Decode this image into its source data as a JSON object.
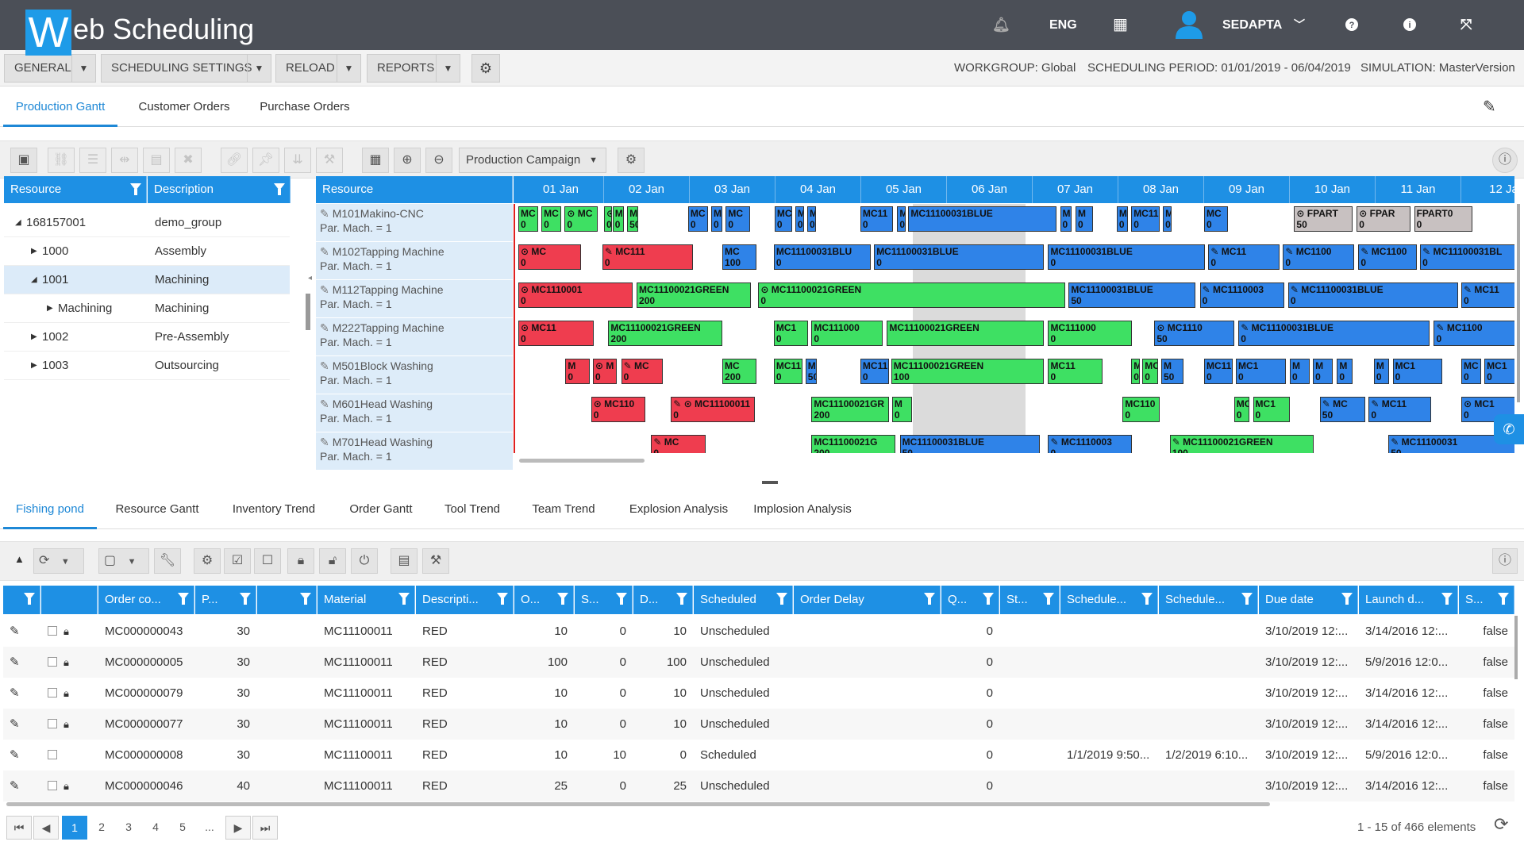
{
  "topbar": {
    "logo_letter": "W",
    "logo_rest": "eb Scheduling",
    "language": "ENG",
    "user": "SEDAPTA"
  },
  "menubar": {
    "buttons": [
      "GENERAL",
      "SCHEDULING SETTINGS",
      "RELOAD",
      "REPORTS"
    ],
    "workgroup": "WORKGROUP: Global",
    "period": "SCHEDULING PERIOD: 01/01/2019 - 06/04/2019",
    "simulation": "SIMULATION: MasterVersion"
  },
  "top_tabs": [
    "Production Gantt",
    "Customer Orders",
    "Purchase Orders"
  ],
  "gantt_toolbar": {
    "campaign_select": "Production Campaign"
  },
  "tree": {
    "headers": [
      "Resource",
      "Description"
    ],
    "rows": [
      {
        "resource": "168157001",
        "description": "demo_group",
        "prefix": "◢"
      },
      {
        "resource": "1000",
        "description": "Assembly",
        "prefix": "▶"
      },
      {
        "resource": "1001",
        "description": "Machining",
        "prefix": "◢"
      },
      {
        "resource": "Machining",
        "description": "Machining",
        "prefix": "▶"
      },
      {
        "resource": "1002",
        "description": "Pre-Assembly",
        "prefix": "▶"
      },
      {
        "resource": "1003",
        "description": "Outsourcing",
        "prefix": "▶"
      }
    ]
  },
  "gantt": {
    "resource_header": "Resource",
    "days": [
      "01 Jan",
      "02 Jan",
      "03 Jan",
      "04 Jan",
      "05 Jan",
      "06 Jan",
      "07 Jan",
      "08 Jan",
      "09 Jan",
      "10 Jan",
      "11 Jan",
      "12 Ja"
    ],
    "resources": [
      {
        "name": "M101Makino-CNC",
        "sub": "Par. Mach. = 1"
      },
      {
        "name": "M102Tapping Machine",
        "sub": "Par. Mach. = 1"
      },
      {
        "name": "M112Tapping Machine",
        "sub": "Par. Mach. = 1"
      },
      {
        "name": "M222Tapping Machine",
        "sub": "Par. Mach. = 1"
      },
      {
        "name": "M501Block Washing",
        "sub": "Par. Mach. = 1"
      },
      {
        "name": "M601Head Washing",
        "sub": "Par. Mach. = 1"
      },
      {
        "name": "M701Head Washing",
        "sub": "Par. Mach. = 1"
      }
    ],
    "bars": [
      {
        "row": 0,
        "day": 0.0,
        "len": 0.25,
        "color": "green",
        "label": "MC",
        "qty": "0"
      },
      {
        "row": 0,
        "day": 0.27,
        "len": 0.25,
        "color": "green",
        "label": "MC",
        "qty": "0"
      },
      {
        "row": 0,
        "day": 0.54,
        "len": 0.4,
        "color": "green",
        "label": "⊙ MC",
        "qty": "0"
      },
      {
        "row": 0,
        "day": 1.0,
        "len": 0.08,
        "color": "green",
        "label": "⊙",
        "qty": "0"
      },
      {
        "row": 0,
        "day": 1.1,
        "len": 0.15,
        "color": "green",
        "label": "M",
        "qty": "0"
      },
      {
        "row": 0,
        "day": 1.27,
        "len": 0.15,
        "color": "green",
        "label": "M",
        "qty": "50"
      },
      {
        "row": 0,
        "day": 1.98,
        "len": 0.25,
        "color": "blue",
        "label": "MC",
        "qty": "0"
      },
      {
        "row": 0,
        "day": 2.25,
        "len": 0.15,
        "color": "blue",
        "label": "M",
        "qty": "0"
      },
      {
        "row": 0,
        "day": 2.42,
        "len": 0.3,
        "color": "blue",
        "label": "MC",
        "qty": "0"
      },
      {
        "row": 0,
        "day": 2.99,
        "len": 0.22,
        "color": "blue",
        "label": "MC",
        "qty": "0"
      },
      {
        "row": 0,
        "day": 3.23,
        "len": 0.12,
        "color": "blue",
        "label": "M",
        "qty": "0"
      },
      {
        "row": 0,
        "day": 3.37,
        "len": 0.12,
        "color": "blue",
        "label": "M",
        "qty": "0"
      },
      {
        "row": 0,
        "day": 3.99,
        "len": 0.4,
        "color": "blue",
        "label": "MC11",
        "qty": "0"
      },
      {
        "row": 0,
        "day": 4.42,
        "len": 0.12,
        "color": "blue",
        "label": "M",
        "qty": "0"
      },
      {
        "row": 0,
        "day": 4.55,
        "len": 1.75,
        "color": "blue",
        "label": "MC11100031BLUE",
        "qty": ""
      },
      {
        "row": 0,
        "day": 6.32,
        "len": 0.15,
        "color": "blue",
        "label": "M",
        "qty": "0"
      },
      {
        "row": 0,
        "day": 6.5,
        "len": 0.22,
        "color": "blue",
        "label": "M",
        "qty": "0"
      },
      {
        "row": 0,
        "day": 6.98,
        "len": 0.15,
        "color": "blue",
        "label": "M",
        "qty": "0"
      },
      {
        "row": 0,
        "day": 7.15,
        "len": 0.35,
        "color": "blue",
        "label": "MC11",
        "qty": "0"
      },
      {
        "row": 0,
        "day": 7.52,
        "len": 0.12,
        "color": "blue",
        "label": "M",
        "qty": "0"
      },
      {
        "row": 0,
        "day": 8.0,
        "len": 0.3,
        "color": "blue",
        "label": "MC",
        "qty": "0"
      },
      {
        "row": 0,
        "day": 9.05,
        "len": 0.7,
        "color": "gray",
        "label": "⊙ FPART",
        "qty": "50"
      },
      {
        "row": 0,
        "day": 9.78,
        "len": 0.65,
        "color": "gray",
        "label": "⊙ FPAR",
        "qty": "0"
      },
      {
        "row": 0,
        "day": 10.45,
        "len": 0.7,
        "color": "gray",
        "label": "FPART0",
        "qty": "0"
      },
      {
        "row": 1,
        "day": 0.0,
        "len": 0.75,
        "color": "red",
        "label": "⊙ MC",
        "qty": "0"
      },
      {
        "row": 1,
        "day": 0.98,
        "len": 1.08,
        "color": "red",
        "label": "✎ MC111",
        "qty": "0"
      },
      {
        "row": 1,
        "day": 2.38,
        "len": 0.42,
        "color": "blue",
        "label": "MC",
        "qty": "100"
      },
      {
        "row": 1,
        "day": 2.98,
        "len": 1.15,
        "color": "blue",
        "label": "MC11100031BLU",
        "qty": "0"
      },
      {
        "row": 1,
        "day": 4.15,
        "len": 2.0,
        "color": "blue",
        "label": "MC11100031BLUE",
        "qty": "0"
      },
      {
        "row": 1,
        "day": 6.18,
        "len": 1.85,
        "color": "blue",
        "label": "MC11100031BLUE",
        "qty": "0"
      },
      {
        "row": 1,
        "day": 8.05,
        "len": 0.85,
        "color": "blue",
        "label": "✎ MC11",
        "qty": "0"
      },
      {
        "row": 1,
        "day": 8.92,
        "len": 0.85,
        "color": "blue",
        "label": "✎ MC1100",
        "qty": "0"
      },
      {
        "row": 1,
        "day": 9.8,
        "len": 0.7,
        "color": "blue",
        "label": "✎ MC1100",
        "qty": "0"
      },
      {
        "row": 1,
        "day": 10.52,
        "len": 1.48,
        "color": "blue",
        "label": "✎ MC11100031BL",
        "qty": "0"
      },
      {
        "row": 2,
        "day": 0.0,
        "len": 1.35,
        "color": "red",
        "label": "⊙ MC1110001",
        "qty": "0"
      },
      {
        "row": 2,
        "day": 1.38,
        "len": 1.35,
        "color": "green",
        "label": "MC11100021GREEN",
        "qty": "200"
      },
      {
        "row": 2,
        "day": 2.8,
        "len": 3.6,
        "color": "green",
        "label": "⊙ MC11100021GREEN",
        "qty": "0"
      },
      {
        "row": 2,
        "day": 6.42,
        "len": 1.5,
        "color": "blue",
        "label": "MC11100031BLUE",
        "qty": "50"
      },
      {
        "row": 2,
        "day": 7.95,
        "len": 1.0,
        "color": "blue",
        "label": "✎ MC1110003",
        "qty": "0"
      },
      {
        "row": 2,
        "day": 8.98,
        "len": 2.0,
        "color": "blue",
        "label": "✎ MC11100031BLUE",
        "qty": "0"
      },
      {
        "row": 2,
        "day": 11.0,
        "len": 1.0,
        "color": "blue",
        "label": "✎ MC11",
        "qty": "0"
      },
      {
        "row": 3,
        "day": 0.0,
        "len": 0.9,
        "color": "red",
        "label": "⊙ MC11",
        "qty": "0"
      },
      {
        "row": 3,
        "day": 1.05,
        "len": 1.35,
        "color": "green",
        "label": "MC11100021GREEN",
        "qty": "200"
      },
      {
        "row": 3,
        "day": 2.98,
        "len": 0.42,
        "color": "green",
        "label": "MC1",
        "qty": "0"
      },
      {
        "row": 3,
        "day": 3.42,
        "len": 0.85,
        "color": "green",
        "label": "MC111000",
        "qty": "0"
      },
      {
        "row": 3,
        "day": 4.3,
        "len": 1.85,
        "color": "green",
        "label": "MC11100021GREEN",
        "qty": ""
      },
      {
        "row": 3,
        "day": 6.18,
        "len": 1.0,
        "color": "green",
        "label": "MC111000",
        "qty": "0"
      },
      {
        "row": 3,
        "day": 7.42,
        "len": 0.95,
        "color": "blue",
        "label": "⊙ MC1110",
        "qty": "50"
      },
      {
        "row": 3,
        "day": 8.4,
        "len": 2.25,
        "color": "blue",
        "label": "✎ MC11100031BLUE",
        "qty": "0"
      },
      {
        "row": 3,
        "day": 10.68,
        "len": 1.32,
        "color": "blue",
        "label": "✎ MC1100",
        "qty": "0"
      },
      {
        "row": 4,
        "day": 0.55,
        "len": 0.3,
        "color": "red",
        "label": "M",
        "qty": "0"
      },
      {
        "row": 4,
        "day": 0.87,
        "len": 0.3,
        "color": "red",
        "label": "⊙ M",
        "qty": "0"
      },
      {
        "row": 4,
        "day": 1.2,
        "len": 0.5,
        "color": "red",
        "label": "✎ MC",
        "qty": "0"
      },
      {
        "row": 4,
        "day": 2.38,
        "len": 0.42,
        "color": "green",
        "label": "MC",
        "qty": "200"
      },
      {
        "row": 4,
        "day": 2.98,
        "len": 0.35,
        "color": "green",
        "label": "MC11",
        "qty": "0"
      },
      {
        "row": 4,
        "day": 3.35,
        "len": 0.15,
        "color": "blue",
        "label": "M",
        "qty": "50"
      },
      {
        "row": 4,
        "day": 3.99,
        "len": 0.35,
        "color": "blue",
        "label": "MC11",
        "qty": "0"
      },
      {
        "row": 4,
        "day": 4.35,
        "len": 1.8,
        "color": "green",
        "label": "MC11100021GREEN",
        "qty": "100"
      },
      {
        "row": 4,
        "day": 6.18,
        "len": 0.65,
        "color": "green",
        "label": "MC11",
        "qty": "0"
      },
      {
        "row": 4,
        "day": 7.15,
        "len": 0.12,
        "color": "green",
        "label": "M",
        "qty": "0"
      },
      {
        "row": 4,
        "day": 7.28,
        "len": 0.2,
        "color": "green",
        "label": "MC",
        "qty": "0"
      },
      {
        "row": 4,
        "day": 7.5,
        "len": 0.28,
        "color": "blue",
        "label": "M",
        "qty": "50"
      },
      {
        "row": 4,
        "day": 8.0,
        "len": 0.35,
        "color": "blue",
        "label": "MC11",
        "qty": "0"
      },
      {
        "row": 4,
        "day": 8.37,
        "len": 0.6,
        "color": "blue",
        "label": "MC1",
        "qty": "0"
      },
      {
        "row": 4,
        "day": 9.0,
        "len": 0.25,
        "color": "blue",
        "label": "M",
        "qty": "0"
      },
      {
        "row": 4,
        "day": 9.27,
        "len": 0.25,
        "color": "blue",
        "label": "M",
        "qty": "0"
      },
      {
        "row": 4,
        "day": 9.55,
        "len": 0.2,
        "color": "blue",
        "label": "M",
        "qty": "0"
      },
      {
        "row": 4,
        "day": 9.98,
        "len": 0.2,
        "color": "blue",
        "label": "M",
        "qty": "0"
      },
      {
        "row": 4,
        "day": 10.2,
        "len": 0.6,
        "color": "blue",
        "label": "MC1",
        "qty": "0"
      },
      {
        "row": 4,
        "day": 11.0,
        "len": 0.25,
        "color": "blue",
        "label": "MC",
        "qty": "0"
      },
      {
        "row": 4,
        "day": 11.27,
        "len": 0.7,
        "color": "blue",
        "label": "MC1",
        "qty": "0"
      },
      {
        "row": 5,
        "day": 0.85,
        "len": 0.65,
        "color": "red",
        "label": "⊙ MC110",
        "qty": "0"
      },
      {
        "row": 5,
        "day": 1.78,
        "len": 1.0,
        "color": "red",
        "label": "✎ ⊙ MC11100011",
        "qty": "0"
      },
      {
        "row": 5,
        "day": 3.42,
        "len": 0.92,
        "color": "green",
        "label": "MC11100021GR",
        "qty": "200"
      },
      {
        "row": 5,
        "day": 4.36,
        "len": 0.25,
        "color": "green",
        "label": "M",
        "qty": "0"
      },
      {
        "row": 5,
        "day": 7.05,
        "len": 0.45,
        "color": "green",
        "label": "MC110",
        "qty": "0"
      },
      {
        "row": 5,
        "day": 8.35,
        "len": 0.2,
        "color": "green",
        "label": "MC",
        "qty": "0"
      },
      {
        "row": 5,
        "day": 8.57,
        "len": 0.45,
        "color": "green",
        "label": "MC1",
        "qty": "0"
      },
      {
        "row": 5,
        "day": 9.35,
        "len": 0.55,
        "color": "blue",
        "label": "✎ MC",
        "qty": "50"
      },
      {
        "row": 5,
        "day": 9.92,
        "len": 0.75,
        "color": "blue",
        "label": "✎ MC11",
        "qty": "0"
      },
      {
        "row": 5,
        "day": 11.0,
        "len": 1.0,
        "color": "blue",
        "label": "⊙ MC1",
        "qty": "0"
      },
      {
        "row": 6,
        "day": 1.55,
        "len": 0.65,
        "color": "red",
        "label": "✎ MC",
        "qty": "0"
      },
      {
        "row": 6,
        "day": 3.42,
        "len": 1.0,
        "color": "green",
        "label": "MC11100021G",
        "qty": "200"
      },
      {
        "row": 6,
        "day": 4.45,
        "len": 1.65,
        "color": "blue",
        "label": "MC11100031BLUE",
        "qty": "50"
      },
      {
        "row": 6,
        "day": 6.18,
        "len": 1.0,
        "color": "blue",
        "label": "✎ MC1110003",
        "qty": "0"
      },
      {
        "row": 6,
        "day": 7.6,
        "len": 1.7,
        "color": "green",
        "label": "✎ MC11100021GREEN",
        "qty": "100"
      },
      {
        "row": 6,
        "day": 10.15,
        "len": 1.85,
        "color": "blue",
        "label": "✎ MC11100031",
        "qty": "50"
      }
    ]
  },
  "bottom_tabs": [
    "Fishing pond",
    "Resource Gantt",
    "Inventory Trend",
    "Order Gantt",
    "Tool Trend",
    "Team Trend",
    "Explosion Analysis",
    "Implosion Analysis"
  ],
  "grid": {
    "columns": [
      "",
      "",
      "Order co...",
      "P...",
      "",
      "Material",
      "Descripti...",
      "O...",
      "S...",
      "D...",
      "Scheduled",
      "Order Delay",
      "Q...",
      "St...",
      "Schedule...",
      "Schedule...",
      "Due date",
      "Launch d...",
      "S..."
    ],
    "rows": [
      {
        "locked": true,
        "order": "MC000000043",
        "p": "30",
        "material": "MC11100011",
        "desc": "RED",
        "o": "10",
        "s": "0",
        "d": "10",
        "scheduled": "Unscheduled",
        "q": "0",
        "sched1": "",
        "sched2": "",
        "due": "3/10/2019 12:...",
        "launch": "3/14/2016 12:...",
        "sflag": "false"
      },
      {
        "locked": true,
        "order": "MC000000005",
        "p": "30",
        "material": "MC11100011",
        "desc": "RED",
        "o": "100",
        "s": "0",
        "d": "100",
        "scheduled": "Unscheduled",
        "q": "0",
        "sched1": "",
        "sched2": "",
        "due": "3/10/2019 12:...",
        "launch": "5/9/2016 12:0...",
        "sflag": "false"
      },
      {
        "locked": true,
        "order": "MC000000079",
        "p": "30",
        "material": "MC11100011",
        "desc": "RED",
        "o": "10",
        "s": "0",
        "d": "10",
        "scheduled": "Unscheduled",
        "q": "0",
        "sched1": "",
        "sched2": "",
        "due": "3/10/2019 12:...",
        "launch": "3/14/2016 12:...",
        "sflag": "false"
      },
      {
        "locked": true,
        "order": "MC000000077",
        "p": "30",
        "material": "MC11100011",
        "desc": "RED",
        "o": "10",
        "s": "0",
        "d": "10",
        "scheduled": "Unscheduled",
        "q": "0",
        "sched1": "",
        "sched2": "",
        "due": "3/10/2019 12:...",
        "launch": "3/14/2016 12:...",
        "sflag": "false"
      },
      {
        "locked": false,
        "order": "MC000000008",
        "p": "30",
        "material": "MC11100011",
        "desc": "RED",
        "o": "10",
        "s": "10",
        "d": "0",
        "scheduled": "Scheduled",
        "q": "0",
        "sched1": "1/1/2019 9:50...",
        "sched2": "1/2/2019 6:10...",
        "due": "3/10/2019 12:...",
        "launch": "5/9/2016 12:0...",
        "sflag": "false"
      },
      {
        "locked": true,
        "order": "MC000000046",
        "p": "40",
        "material": "MC11100011",
        "desc": "RED",
        "o": "25",
        "s": "0",
        "d": "25",
        "scheduled": "Unscheduled",
        "q": "0",
        "sched1": "",
        "sched2": "",
        "due": "3/10/2019 12:...",
        "launch": "3/14/2016 12:...",
        "sflag": "false"
      }
    ]
  },
  "pagination": {
    "pages": [
      "1",
      "2",
      "3",
      "4",
      "5",
      "..."
    ],
    "summary": "1 - 15 of 466 elements"
  }
}
